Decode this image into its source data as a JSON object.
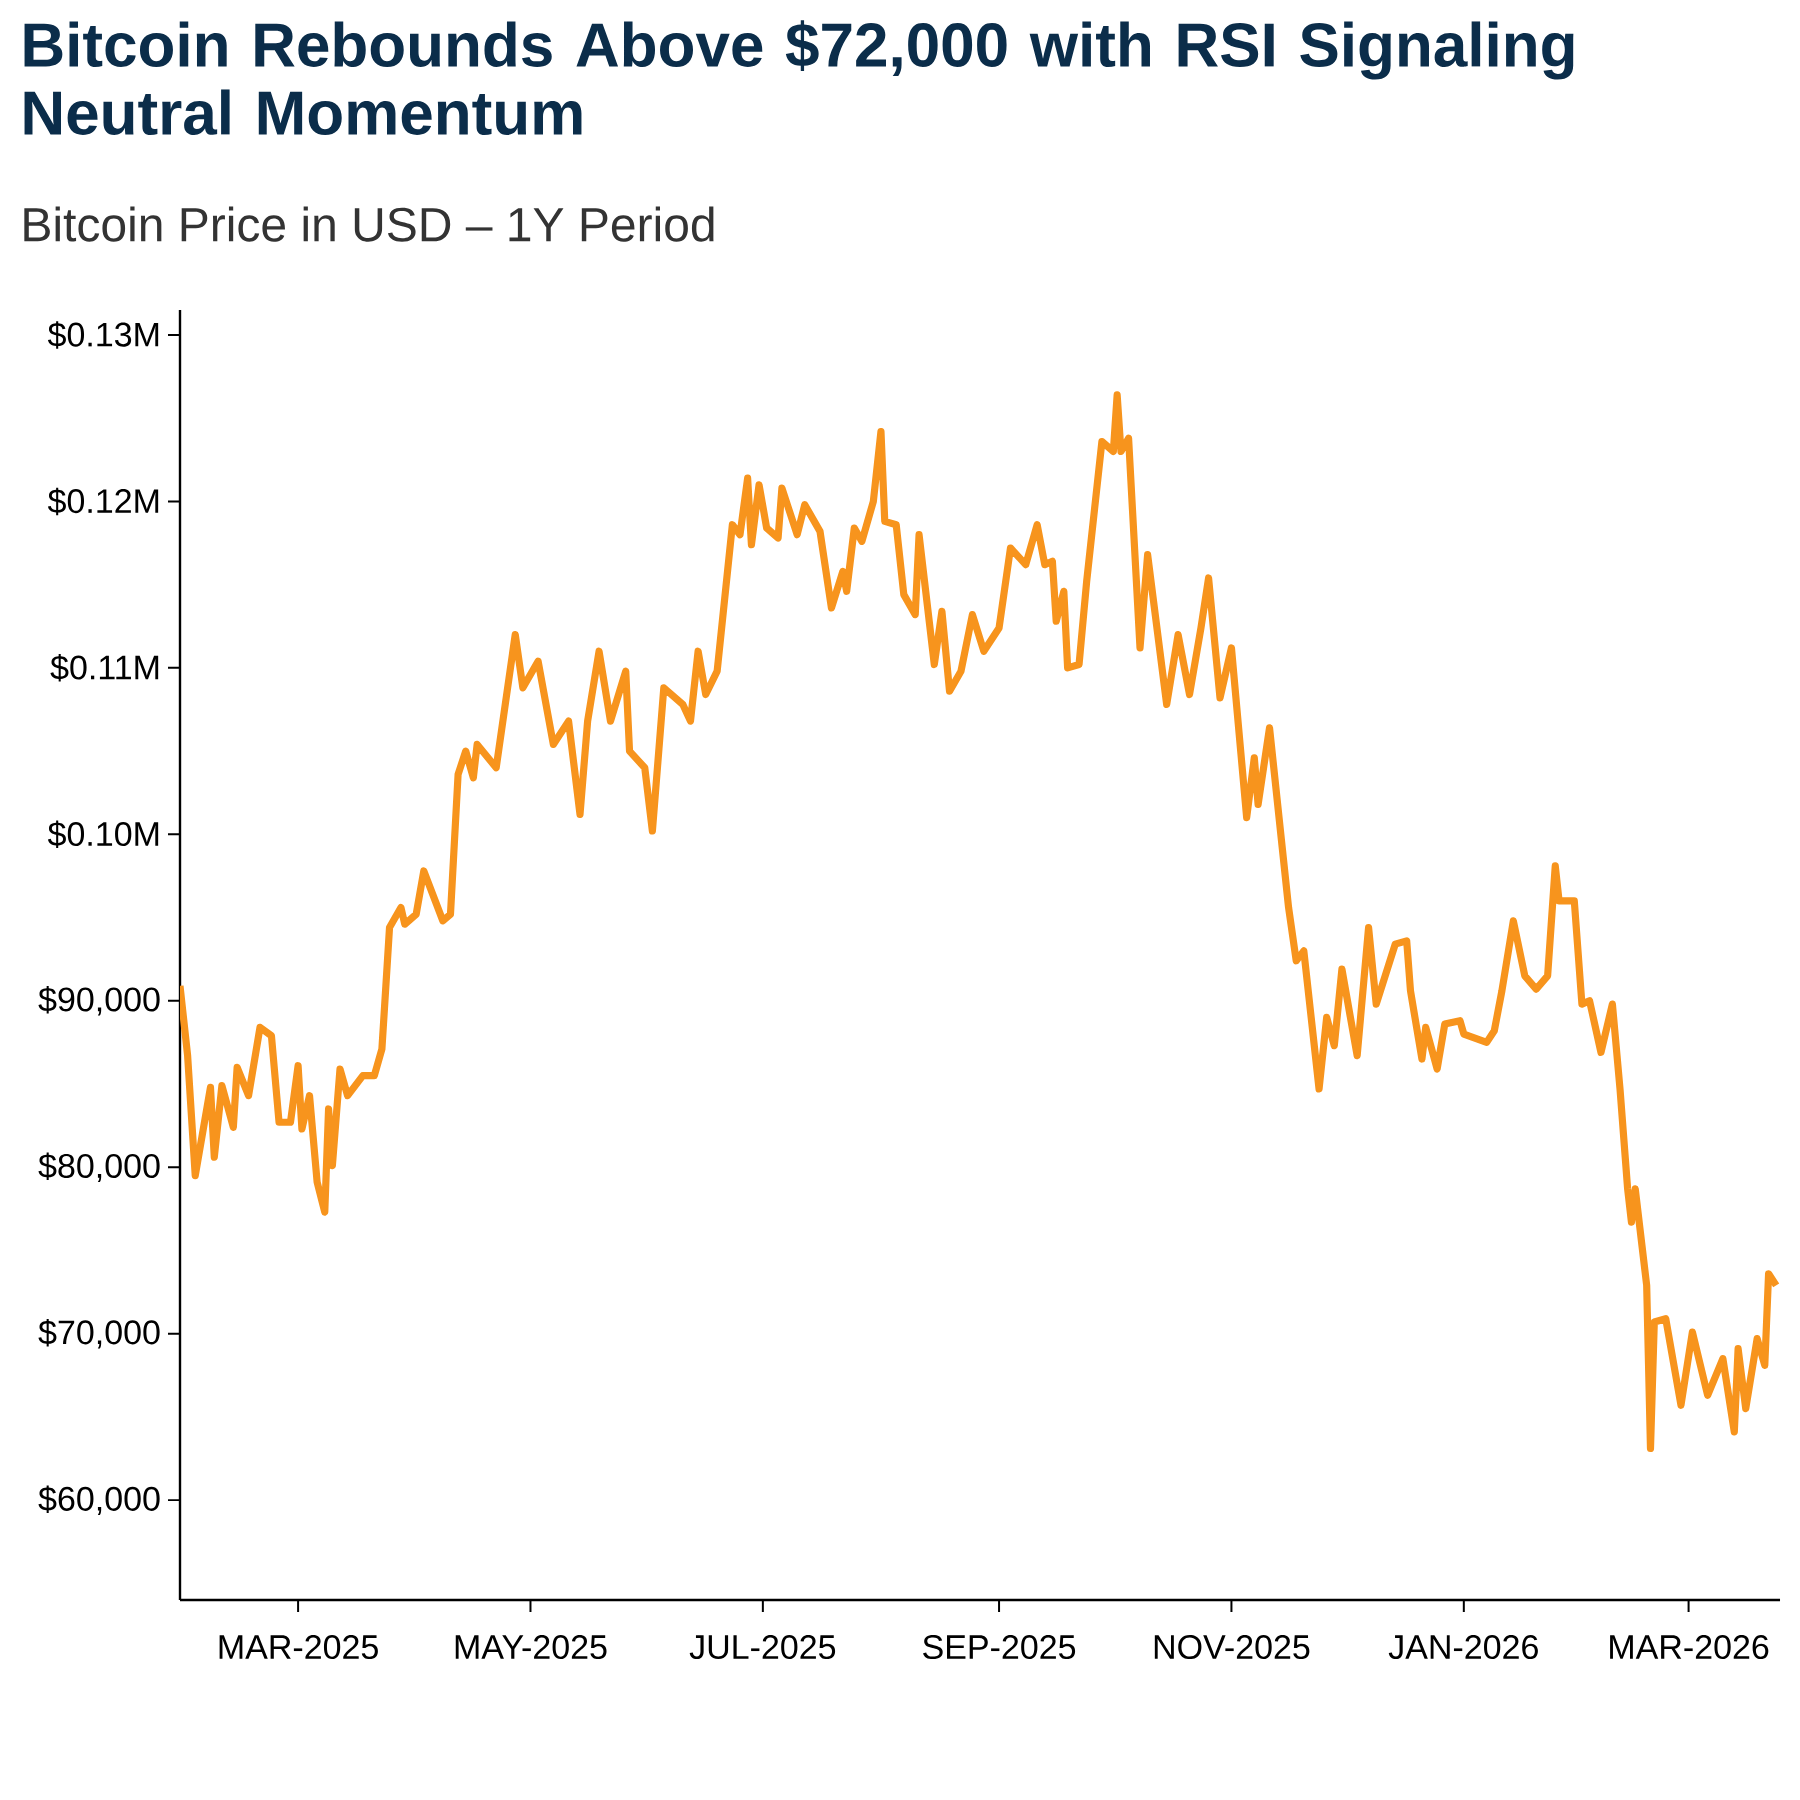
{
  "chart_data": {
    "type": "line",
    "title": "Bitcoin Rebounds Above $72,000 with RSI Signaling Neutral Momentum",
    "subtitle": "Bitcoin Price in USD – 1Y Period",
    "color": "#f7941d",
    "line_style": "solid",
    "x": [
      "2025-01-29",
      "2025-01-31",
      "2025-02-02",
      "2025-02-06",
      "2025-02-07",
      "2025-02-09",
      "2025-02-12",
      "2025-02-13",
      "2025-02-16",
      "2025-02-19",
      "2025-02-22",
      "2025-02-24",
      "2025-02-27",
      "2025-03-01",
      "2025-03-02",
      "2025-03-04",
      "2025-03-06",
      "2025-03-08",
      "2025-03-09",
      "2025-03-10",
      "2025-03-12",
      "2025-03-14",
      "2025-03-18",
      "2025-03-21",
      "2025-03-23",
      "2025-03-25",
      "2025-03-28",
      "2025-03-29",
      "2025-04-01",
      "2025-04-03",
      "2025-04-08",
      "2025-04-10",
      "2025-04-12",
      "2025-04-14",
      "2025-04-16",
      "2025-04-17",
      "2025-04-22",
      "2025-04-27",
      "2025-04-29",
      "2025-05-03",
      "2025-05-07",
      "2025-05-11",
      "2025-05-14",
      "2025-05-16",
      "2025-05-19",
      "2025-05-22",
      "2025-05-26",
      "2025-05-27",
      "2025-05-31",
      "2025-06-02",
      "2025-06-05",
      "2025-06-10",
      "2025-06-12",
      "2025-06-14",
      "2025-06-16",
      "2025-06-19",
      "2025-06-23",
      "2025-06-25",
      "2025-06-27",
      "2025-06-28",
      "2025-06-30",
      "2025-07-02",
      "2025-07-05",
      "2025-07-06",
      "2025-07-10",
      "2025-07-12",
      "2025-07-16",
      "2025-07-19",
      "2025-07-22",
      "2025-07-23",
      "2025-07-25",
      "2025-07-27",
      "2025-07-30",
      "2025-08-01",
      "2025-08-02",
      "2025-08-05",
      "2025-08-07",
      "2025-08-10",
      "2025-08-11",
      "2025-08-15",
      "2025-08-17",
      "2025-08-19",
      "2025-08-22",
      "2025-08-25",
      "2025-08-28",
      "2025-09-01",
      "2025-09-04",
      "2025-09-08",
      "2025-09-11",
      "2025-09-13",
      "2025-09-15",
      "2025-09-16",
      "2025-09-18",
      "2025-09-19",
      "2025-09-22",
      "2025-09-24",
      "2025-09-28",
      "2025-10-01",
      "2025-10-02",
      "2025-10-03",
      "2025-10-05",
      "2025-10-08",
      "2025-10-10",
      "2025-10-15",
      "2025-10-18",
      "2025-10-21",
      "2025-10-24",
      "2025-10-26",
      "2025-10-29",
      "2025-11-01",
      "2025-11-05",
      "2025-11-07",
      "2025-11-08",
      "2025-11-11",
      "2025-11-16",
      "2025-11-18",
      "2025-11-20",
      "2025-11-24",
      "2025-11-26",
      "2025-11-28",
      "2025-11-30",
      "2025-12-04",
      "2025-12-07",
      "2025-12-09",
      "2025-12-14",
      "2025-12-17",
      "2025-12-18",
      "2025-12-21",
      "2025-12-22",
      "2025-12-25",
      "2025-12-27",
      "2025-12-31",
      "2026-01-01",
      "2026-01-07",
      "2026-01-09",
      "2026-01-11",
      "2026-01-14",
      "2026-01-17",
      "2026-01-20",
      "2026-01-23",
      "2026-01-25",
      "2026-01-26",
      "2026-01-30",
      "2026-02-01",
      "2026-02-03",
      "2026-02-06",
      "2026-02-09",
      "2026-02-11",
      "2026-02-13",
      "2026-02-14",
      "2026-02-15",
      "2026-02-18",
      "2026-02-19",
      "2026-02-20",
      "2026-02-23",
      "2026-02-27",
      "2026-03-02",
      "2026-03-06",
      "2026-03-10",
      "2026-03-13",
      "2026-03-14",
      "2026-03-16",
      "2026-03-19",
      "2026-03-21",
      "2026-03-22",
      "2026-03-24"
    ],
    "values": [
      90900,
      86700,
      79500,
      84800,
      80600,
      84900,
      82400,
      86000,
      84300,
      88400,
      87900,
      82700,
      82700,
      86100,
      82300,
      84300,
      79100,
      77300,
      83500,
      80100,
      85900,
      84300,
      85500,
      85500,
      87100,
      94400,
      95600,
      94600,
      95200,
      97800,
      94800,
      95200,
      103600,
      105000,
      103400,
      105400,
      104000,
      112000,
      108800,
      110400,
      105400,
      106800,
      101200,
      106800,
      111000,
      106800,
      109800,
      105000,
      104000,
      100200,
      108800,
      107800,
      106800,
      111000,
      108400,
      109800,
      118600,
      118000,
      121400,
      117400,
      121000,
      118400,
      117800,
      120800,
      118000,
      119800,
      118200,
      113600,
      115800,
      114600,
      118400,
      117600,
      120000,
      124200,
      118800,
      118600,
      114400,
      113200,
      118000,
      110200,
      113400,
      108600,
      109800,
      113200,
      111000,
      112400,
      117200,
      116200,
      118600,
      116200,
      116400,
      112800,
      114600,
      110000,
      110200,
      115200,
      123600,
      123000,
      126400,
      123000,
      123800,
      111200,
      116800,
      107800,
      112000,
      108400,
      112400,
      115400,
      108200,
      111200,
      101000,
      104600,
      101800,
      106400,
      95600,
      92400,
      93000,
      84700,
      89000,
      87300,
      91900,
      86700,
      94400,
      89800,
      93400,
      93600,
      90600,
      86500,
      88400,
      85900,
      88600,
      88800,
      88000,
      87500,
      88200,
      90600,
      94800,
      91500,
      90700,
      91500,
      98100,
      96000,
      96000,
      89800,
      90000,
      86900,
      89800,
      84700,
      78700,
      76700,
      78700,
      72900,
      63100,
      70700,
      70900,
      65700,
      70100,
      66300,
      68500,
      64100,
      69100,
      65500,
      69700,
      68100,
      73600,
      72900
    ],
    "xlim": [
      "2025-01-29",
      "2026-03-25"
    ],
    "xticks": [
      {
        "value": "2025-03-01",
        "label": "MAR-2025"
      },
      {
        "value": "2025-05-01",
        "label": "MAY-2025"
      },
      {
        "value": "2025-07-01",
        "label": "JUL-2025"
      },
      {
        "value": "2025-09-01",
        "label": "SEP-2025"
      },
      {
        "value": "2025-11-01",
        "label": "NOV-2025"
      },
      {
        "value": "2026-01-01",
        "label": "JAN-2026"
      },
      {
        "value": "2026-03-01",
        "label": "MAR-2026"
      }
    ],
    "ylim": [
      54000,
      131500
    ],
    "yticks": [
      {
        "value": 60000,
        "label": "$60,000"
      },
      {
        "value": 70000,
        "label": "$70,000"
      },
      {
        "value": 80000,
        "label": "$80,000"
      },
      {
        "value": 90000,
        "label": "$90,000"
      },
      {
        "value": 100000,
        "label": "$0.10M"
      },
      {
        "value": 110000,
        "label": "$0.11M"
      },
      {
        "value": 120000,
        "label": "$0.12M"
      },
      {
        "value": 130000,
        "label": "$0.13M"
      }
    ]
  }
}
